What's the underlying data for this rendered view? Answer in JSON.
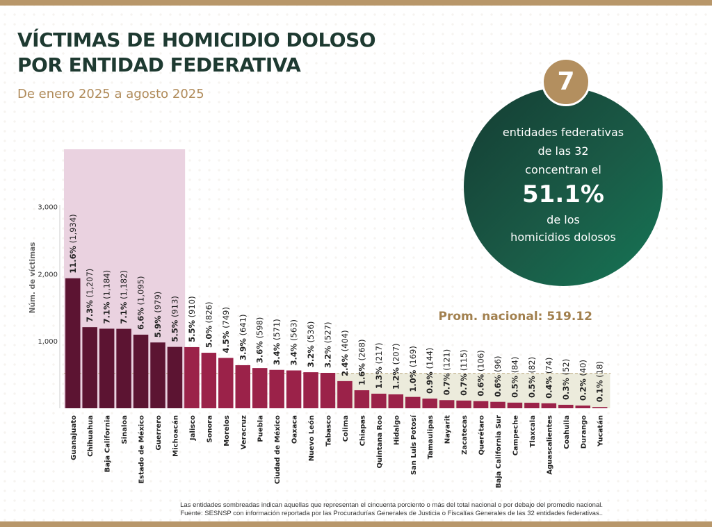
{
  "header": {
    "title_line1": "VÍCTIMAS DE HOMICIDIO DOLOSO",
    "title_line2": "POR ENTIDAD FEDERATIVA",
    "subtitle": "De enero 2025 a agosto 2025"
  },
  "callout": {
    "number": "7",
    "line1": "entidades federativas",
    "line2": "de las 32",
    "line3": "concentran el",
    "percent": "51.1%",
    "line4": "de los",
    "line5": "homicidios dolosos"
  },
  "footnote": {
    "line1": "Las entidades sombreadas indican aquellas que representan el cincuenta porciento o más del total nacional o por debajo del promedio nacional.",
    "line2": "Fuente: SESNSP con información reportada por las Procuradurías Generales de Justicia o Fiscalías Generales de las 32 entidades federativas.."
  },
  "colors": {
    "top_states": "#5c1432",
    "other_states": "#9b2249",
    "highlight_band": "#ead2e0",
    "below_avg_band": "#ecebdc",
    "avg_label": "#a2804e",
    "title": "#1e3a31",
    "accent": "#b38f5f"
  },
  "chart_data": {
    "type": "bar",
    "title": "VÍCTIMAS DE HOMICIDIO DOLOSO POR ENTIDAD FEDERATIVA",
    "subtitle": "De enero 2025 a agosto 2025",
    "xlabel": "",
    "ylabel": "Núm. de víctimas",
    "ylim": [
      0,
      3200
    ],
    "yticks": [
      1000,
      2000,
      3000
    ],
    "ytick_labels": [
      "1,000",
      "2,000",
      "3,000"
    ],
    "grid": false,
    "average": 519.12,
    "average_label": "Prom. nacional: 519.12",
    "top_count": 7,
    "categories": [
      "Guanajuato",
      "Chihuahua",
      "Baja California",
      "Sinaloa",
      "Estado de México",
      "Guerrero",
      "Michoacán",
      "Jalisco",
      "Sonora",
      "Morelos",
      "Veracruz",
      "Puebla",
      "Ciudad de México",
      "Oaxaca",
      "Nuevo León",
      "Tabasco",
      "Colima",
      "Chiapas",
      "Quintana Roo",
      "Hidalgo",
      "San Luis Potosí",
      "Tamaulipas",
      "Nayarit",
      "Zacatecas",
      "Querétaro",
      "Baja California Sur",
      "Campeche",
      "Tlaxcala",
      "Aguascalientes",
      "Coahuila",
      "Durango",
      "Yucatán"
    ],
    "values": [
      1934,
      1207,
      1184,
      1182,
      1095,
      979,
      913,
      910,
      826,
      749,
      641,
      598,
      571,
      563,
      536,
      527,
      404,
      268,
      217,
      207,
      169,
      144,
      121,
      115,
      106,
      96,
      84,
      82,
      74,
      52,
      40,
      18
    ],
    "percent_labels": [
      "11.6%",
      "7.3%",
      "7.1%",
      "7.1%",
      "6.6%",
      "5.9%",
      "5.5%",
      "5.5%",
      "5.0%",
      "4.5%",
      "3.9%",
      "3.6%",
      "3.4%",
      "3.4%",
      "3.2%",
      "3.2%",
      "2.4%",
      "1.6%",
      "1.3%",
      "1.2%",
      "1.0%",
      "0.9%",
      "0.7%",
      "0.7%",
      "0.6%",
      "0.6%",
      "0.5%",
      "0.5%",
      "0.4%",
      "0.3%",
      "0.2%",
      "0.1%"
    ],
    "value_labels": [
      "(1,934)",
      "(1,207)",
      "(1,184)",
      "(1,182)",
      "(1,095)",
      "(979)",
      "(913)",
      "(910)",
      "(826)",
      "(749)",
      "(641)",
      "(598)",
      "(571)",
      "(563)",
      "(536)",
      "(527)",
      "(404)",
      "(268)",
      "(217)",
      "(207)",
      "(169)",
      "(144)",
      "(121)",
      "(115)",
      "(106)",
      "(96)",
      "(84)",
      "(82)",
      "(74)",
      "(52)",
      "(40)",
      "(18)"
    ]
  }
}
